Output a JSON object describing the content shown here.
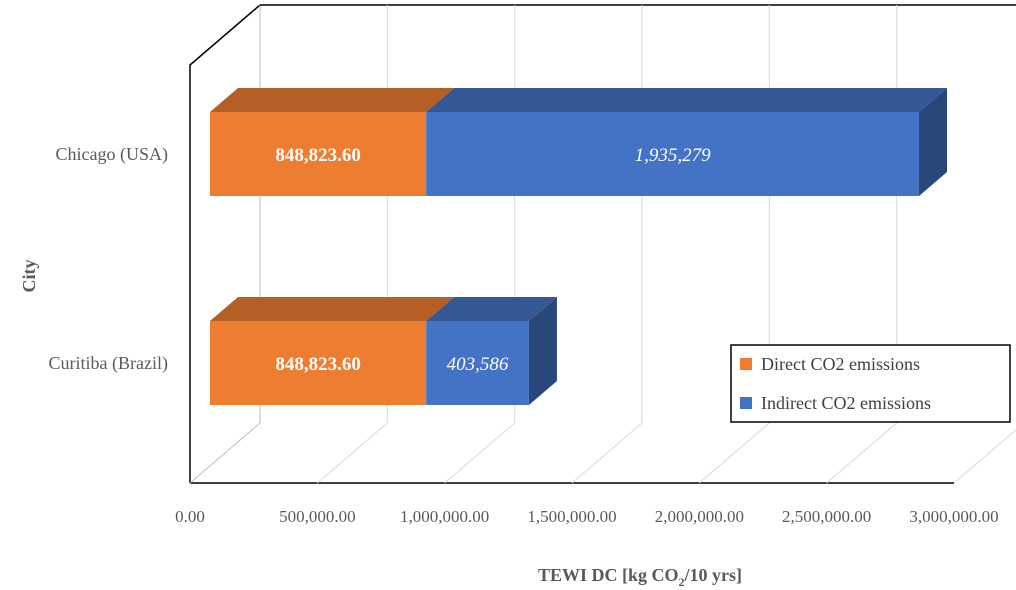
{
  "chart_data": {
    "type": "bar",
    "orientation": "horizontal",
    "stacked": true,
    "three_d": true,
    "categories": [
      "Chicago (USA)",
      "Curitiba (Brazil)"
    ],
    "series": [
      {
        "name": "Direct CO2 emissions",
        "color": "#ED7D31",
        "values": [
          848823.6,
          848823.6
        ],
        "labels": [
          "848,823.60",
          "848,823.60"
        ],
        "label_style": "bold"
      },
      {
        "name": "Indirect CO2 emissions",
        "color": "#4472C4",
        "values": [
          1935279,
          403586
        ],
        "labels": [
          "1,935,279",
          "403,586"
        ],
        "label_style": "italic"
      }
    ],
    "x_ticks": [
      "0.00",
      "500,000.00",
      "1,000,000.00",
      "1,500,000.00",
      "2,000,000.00",
      "2,500,000.00",
      "3,000,000.00"
    ],
    "xlim": [
      0,
      3000000
    ],
    "xlabel": "TEWI DC [kg CO",
    "xlabel_sub": "2",
    "xlabel_tail": "/10 yrs]",
    "ylabel": "City",
    "legend_position": "bottom-right",
    "grid": true
  }
}
